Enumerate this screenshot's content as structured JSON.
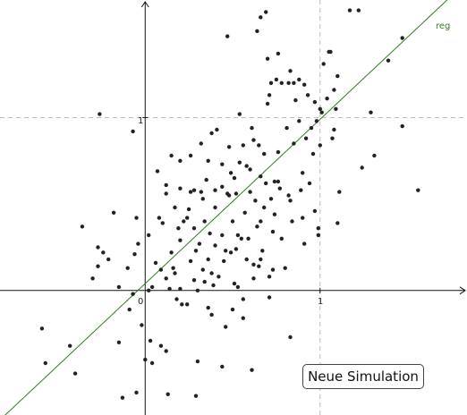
{
  "chart_data": {
    "type": "scatter",
    "xlim": [
      -0.83,
      1.84
    ],
    "ylim": [
      -0.72,
      1.68
    ],
    "grid": "dashed lines at x=1 and y=1",
    "tick_labels": {
      "origin": "0",
      "x_one": "1",
      "y_one": "1"
    },
    "points": [
      [
        -0.59,
        -0.22
      ],
      [
        -0.57,
        -0.42
      ],
      [
        -0.43,
        -0.32
      ],
      [
        -0.36,
        0.37
      ],
      [
        -0.4,
        -0.48
      ],
      [
        -0.3,
        0.07
      ],
      [
        -0.27,
        0.14
      ],
      [
        -0.24,
        0.22
      ],
      [
        -0.27,
        0.25
      ],
      [
        -0.21,
        0.18
      ],
      [
        -0.26,
        1.02
      ],
      [
        -0.15,
        0.02
      ],
      [
        -0.15,
        -0.3
      ],
      [
        -0.18,
        0.45
      ],
      [
        -0.13,
        -0.62
      ],
      [
        -0.1,
        0.13
      ],
      [
        -0.06,
        0.21
      ],
      [
        -0.04,
        0.27
      ],
      [
        -0.05,
        0.42
      ],
      [
        -0.07,
        0.92
      ],
      [
        -0.05,
        -0.59
      ],
      [
        -0.02,
        -0.2
      ],
      [
        0.0,
        -0.4
      ],
      [
        0.02,
        0.32
      ],
      [
        0.03,
        -0.29
      ],
      [
        0.04,
        -0.42
      ],
      [
        0.07,
        0.69
      ],
      [
        0.06,
        0.16
      ],
      [
        0.08,
        0.42
      ],
      [
        0.09,
        0.12
      ],
      [
        0.1,
        0.39
      ],
      [
        0.12,
        -0.35
      ],
      [
        0.13,
        -0.6
      ],
      [
        0.14,
        0.01
      ],
      [
        0.15,
        0.78
      ],
      [
        0.12,
        0.61
      ],
      [
        0.12,
        0.07
      ],
      [
        0.15,
        0.22
      ],
      [
        0.17,
        0.48
      ],
      [
        0.18,
        -0.05
      ],
      [
        0.19,
        0.36
      ],
      [
        0.2,
        0.29
      ],
      [
        0.22,
        0.4
      ],
      [
        0.2,
        0.01
      ],
      [
        0.24,
        0.42
      ],
      [
        0.26,
        0.17
      ],
      [
        0.26,
        0.78
      ],
      [
        0.28,
        0.36
      ],
      [
        0.28,
        0.06
      ],
      [
        0.29,
        0.23
      ],
      [
        0.29,
        -0.61
      ],
      [
        0.3,
        -0.41
      ],
      [
        0.31,
        0.27
      ],
      [
        0.32,
        0.85
      ],
      [
        0.33,
        0.12
      ],
      [
        0.33,
        0.53
      ],
      [
        0.34,
        0.05
      ],
      [
        0.35,
        0.64
      ],
      [
        0.36,
        0.75
      ],
      [
        0.36,
        0.18
      ],
      [
        0.37,
        0.33
      ],
      [
        0.38,
        0.1
      ],
      [
        0.38,
        -0.14
      ],
      [
        0.39,
        0.03
      ],
      [
        0.4,
        0.26
      ],
      [
        0.4,
        0.48
      ],
      [
        0.41,
        0.93
      ],
      [
        0.42,
        0.08
      ],
      [
        0.44,
        0.6
      ],
      [
        0.44,
        0.32
      ],
      [
        0.45,
        0.17
      ],
      [
        0.46,
        -0.21
      ],
      [
        0.47,
        0.56
      ],
      [
        0.48,
        0.83
      ],
      [
        0.49,
        0.22
      ],
      [
        0.49,
        0.68
      ],
      [
        0.5,
        -0.11
      ],
      [
        0.5,
        0.4
      ],
      [
        0.51,
        0.04
      ],
      [
        0.51,
        0.65
      ],
      [
        0.52,
        0.56
      ],
      [
        0.52,
        0.24
      ],
      [
        0.53,
        0.32
      ],
      [
        0.54,
        1.02
      ],
      [
        0.54,
        0.74
      ],
      [
        0.55,
        0.3
      ],
      [
        0.56,
        0.84
      ],
      [
        0.56,
        -0.05
      ],
      [
        0.56,
        -0.16
      ],
      [
        0.57,
        0.45
      ],
      [
        0.58,
        0.18
      ],
      [
        0.59,
        0.3
      ],
      [
        0.6,
        0.57
      ],
      [
        0.6,
        0.7
      ],
      [
        0.61,
        0.94
      ],
      [
        0.62,
        0.15
      ],
      [
        0.62,
        0.07
      ],
      [
        0.63,
        0.52
      ],
      [
        0.64,
        0.37
      ],
      [
        0.65,
        0.14
      ],
      [
        0.65,
        0.84
      ],
      [
        0.66,
        0.66
      ],
      [
        0.66,
        0.4
      ],
      [
        0.67,
        0.23
      ],
      [
        0.68,
        0.48
      ],
      [
        0.69,
        0.62
      ],
      [
        0.7,
        1.08
      ],
      [
        0.71,
        1.13
      ],
      [
        0.71,
        0.08
      ],
      [
        0.72,
        0.53
      ],
      [
        0.73,
        0.34
      ],
      [
        0.74,
        0.63
      ],
      [
        0.74,
        0.44
      ],
      [
        0.76,
        0.8
      ],
      [
        0.77,
        0.59
      ],
      [
        0.78,
        0.3
      ],
      [
        0.8,
        0.13
      ],
      [
        0.81,
        0.94
      ],
      [
        0.83,
        0.52
      ],
      [
        0.84,
        0.4
      ],
      [
        0.85,
        0.85
      ],
      [
        0.86,
        1.1
      ],
      [
        0.88,
        0.98
      ],
      [
        0.89,
        0.58
      ],
      [
        0.9,
        0.68
      ],
      [
        0.91,
        0.27
      ],
      [
        0.93,
        1.13
      ],
      [
        0.94,
        0.62
      ],
      [
        0.95,
        0.94
      ],
      [
        0.96,
        0.79
      ],
      [
        0.97,
        0.46
      ],
      [
        0.97,
        1.09
      ],
      [
        0.98,
        0.98
      ],
      [
        0.99,
        0.32
      ],
      [
        0.99,
        0.36
      ],
      [
        1.0,
        0.84
      ],
      [
        1.01,
        1.03
      ],
      [
        1.02,
        1.31
      ],
      [
        1.04,
        1.11
      ],
      [
        1.05,
        1.38
      ],
      [
        1.06,
        1.38
      ],
      [
        1.07,
        0.88
      ],
      [
        1.08,
        1.16
      ],
      [
        1.08,
        0.93
      ],
      [
        1.09,
        1.05
      ],
      [
        1.1,
        0.39
      ],
      [
        1.11,
        0.57
      ],
      [
        1.17,
        1.62
      ],
      [
        1.22,
        1.62
      ],
      [
        1.24,
        0.71
      ],
      [
        1.29,
        1.03
      ],
      [
        1.31,
        0.78
      ],
      [
        1.39,
        1.33
      ],
      [
        1.47,
        1.46
      ],
      [
        1.47,
        0.95
      ],
      [
        1.56,
        0.58
      ],
      [
        0.47,
        1.47
      ],
      [
        0.64,
        1.5
      ],
      [
        0.66,
        1.58
      ],
      [
        0.69,
        1.61
      ],
      [
        0.7,
        1.34
      ],
      [
        0.76,
        1.37
      ],
      [
        0.75,
        1.22
      ],
      [
        0.78,
        1.2
      ],
      [
        0.83,
        1.27
      ],
      [
        0.85,
        1.2
      ],
      [
        0.88,
        1.22
      ],
      [
        0.91,
        1.19
      ],
      [
        1.1,
        1.24
      ],
      [
        1.0,
        1.05
      ],
      [
        0.82,
        1.2
      ],
      [
        0.72,
        1.2
      ],
      [
        0.92,
        0.88
      ],
      [
        0.9,
        0.42
      ],
      [
        0.83,
        -0.27
      ],
      [
        0.71,
        -0.04
      ],
      [
        0.61,
        -0.46
      ],
      [
        0.53,
        0.02
      ],
      [
        0.44,
        -0.44
      ],
      [
        0.36,
        -0.1
      ],
      [
        0.3,
        0.0
      ],
      [
        0.24,
        -0.08
      ],
      [
        0.21,
        -0.08
      ],
      [
        0.09,
        -0.32
      ],
      [
        0.04,
        0.02
      ],
      [
        -0.07,
        -0.02
      ],
      [
        -0.09,
        -0.11
      ],
      [
        0.02,
        0.0
      ],
      [
        0.16,
        0.13
      ],
      [
        0.26,
        0.57
      ],
      [
        0.2,
        0.59
      ],
      [
        0.28,
        0.58
      ],
      [
        0.34,
        0.4
      ],
      [
        0.46,
        0.23
      ],
      [
        0.58,
        0.72
      ],
      [
        0.66,
        0.18
      ],
      [
        0.73,
        0.12
      ],
      [
        0.76,
        0.63
      ],
      [
        0.82,
        0.55
      ],
      [
        0.68,
        0.79
      ],
      [
        0.62,
        0.87
      ],
      [
        0.48,
        0.55
      ],
      [
        0.4,
        0.58
      ],
      [
        0.32,
        0.57
      ],
      [
        0.38,
        0.91
      ],
      [
        0.25,
        0.47
      ],
      [
        0.17,
        0.1
      ],
      [
        0.12,
        0.56
      ],
      [
        0.2,
        0.75
      ],
      [
        0.44,
        0.73
      ]
    ],
    "regression_line": {
      "label": "reg",
      "intercept": 0.04,
      "slope": 0.95,
      "color": "#2e7d1f"
    }
  },
  "button": {
    "label": "Neue Simulation"
  }
}
